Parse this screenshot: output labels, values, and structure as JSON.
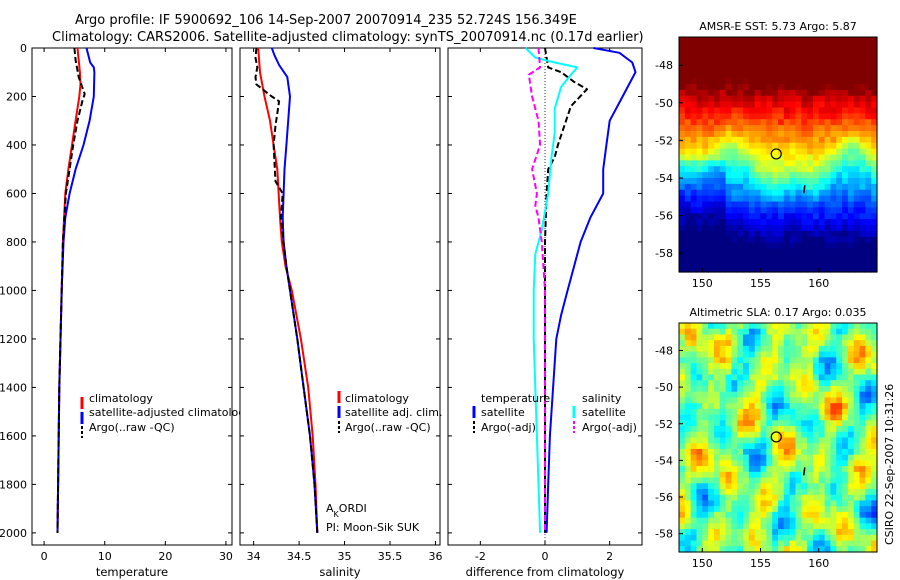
{
  "header": {
    "line1": "Argo profile: IF 5900692_106 14-Sep-2007 20070914_235 52.724S 156.349E",
    "line2": "Climatology: CARS2006. Satellite-adjusted climatology: synTS_20070914.nc (0.17d earlier)"
  },
  "colors": {
    "climatology": "#ff0000",
    "satellite": "#0000ff",
    "argo": "#000000",
    "salinity_satellite": "#00ffff",
    "salinity_argo": "#ff00ff"
  },
  "annotations": {
    "operator_a": "A",
    "operator_sub": "K",
    "operator_rest": "ORDI",
    "pi": "PI: Moon-Sik SUK",
    "credit": "CSIRO 22-Sep-2007 10:31:26"
  },
  "chart_data": [
    {
      "type": "line",
      "xlabel": "temperature",
      "ylabel": "",
      "xlim": [
        -2,
        31
      ],
      "ylim": [
        2050,
        0
      ],
      "xticks": [
        "0",
        "10",
        "20",
        "30"
      ],
      "yticks": [
        "0",
        "200",
        "400",
        "600",
        "800",
        "1000",
        "1200",
        "1400",
        "1600",
        "1800",
        "2000"
      ],
      "legend": [
        "climatology",
        "satellite-adjusted climatology",
        "Argo(..raw -QC)"
      ],
      "series": [
        {
          "name": "climatology",
          "color": "#ff0000",
          "dash": "",
          "points": [
            [
              5.5,
              0
            ],
            [
              5.7,
              50
            ],
            [
              5.9,
              100
            ],
            [
              6.0,
              150
            ],
            [
              5.8,
              200
            ],
            [
              5.2,
              300
            ],
            [
              4.6,
              400
            ],
            [
              4.0,
              500
            ],
            [
              3.5,
              600
            ],
            [
              3.1,
              800
            ],
            [
              2.9,
              1000
            ],
            [
              2.7,
              1200
            ],
            [
              2.5,
              1400
            ],
            [
              2.4,
              1600
            ],
            [
              2.3,
              1800
            ],
            [
              2.2,
              2000
            ]
          ]
        },
        {
          "name": "satellite-adjusted climatology",
          "color": "#0000ff",
          "dash": "",
          "points": [
            [
              7.0,
              0
            ],
            [
              7.6,
              60
            ],
            [
              8.2,
              80
            ],
            [
              8.3,
              100
            ],
            [
              8.2,
              200
            ],
            [
              7.5,
              300
            ],
            [
              6.5,
              400
            ],
            [
              5.2,
              500
            ],
            [
              4.2,
              600
            ],
            [
              3.5,
              700
            ],
            [
              3.2,
              800
            ],
            [
              2.9,
              1000
            ],
            [
              2.7,
              1200
            ],
            [
              2.5,
              1400
            ],
            [
              2.4,
              1600
            ],
            [
              2.3,
              1800
            ],
            [
              2.2,
              2000
            ]
          ]
        },
        {
          "name": "Argo(..raw -QC)",
          "color": "#000000",
          "dash": "6,3",
          "points": [
            [
              5.0,
              0
            ],
            [
              5.2,
              50
            ],
            [
              5.7,
              120
            ],
            [
              6.7,
              190
            ],
            [
              6.3,
              220
            ],
            [
              5.5,
              300
            ],
            [
              4.8,
              400
            ],
            [
              4.2,
              500
            ],
            [
              3.6,
              600
            ],
            [
              3.1,
              800
            ],
            [
              2.9,
              1000
            ],
            [
              2.7,
              1200
            ],
            [
              2.5,
              1400
            ],
            [
              2.4,
              1600
            ],
            [
              2.3,
              1800
            ],
            [
              2.2,
              2000
            ]
          ]
        }
      ]
    },
    {
      "type": "line",
      "xlabel": "salinity",
      "ylabel": "",
      "xlim": [
        33.85,
        36.05
      ],
      "ylim": [
        2050,
        0
      ],
      "xticks": [
        "34",
        "34.5",
        "35",
        "35.5",
        "36"
      ],
      "legend": [
        "climatology",
        "satellite adj. clim.",
        "Argo(..raw -QC)"
      ],
      "series": [
        {
          "name": "climatology",
          "color": "#ff0000",
          "dash": "",
          "points": [
            [
              34.05,
              0
            ],
            [
              34.07,
              100
            ],
            [
              34.12,
              200
            ],
            [
              34.18,
              300
            ],
            [
              34.22,
              400
            ],
            [
              34.26,
              500
            ],
            [
              34.29,
              700
            ],
            [
              34.31,
              800
            ],
            [
              34.35,
              900
            ],
            [
              34.42,
              1000
            ],
            [
              34.52,
              1200
            ],
            [
              34.6,
              1400
            ],
            [
              34.65,
              1600
            ],
            [
              34.68,
              1800
            ],
            [
              34.7,
              2000
            ]
          ]
        },
        {
          "name": "satellite adj. clim.",
          "color": "#0000ff",
          "dash": "",
          "points": [
            [
              34.2,
              0
            ],
            [
              34.23,
              30
            ],
            [
              34.28,
              70
            ],
            [
              34.37,
              120
            ],
            [
              34.4,
              200
            ],
            [
              34.38,
              300
            ],
            [
              34.36,
              400
            ],
            [
              34.34,
              500
            ],
            [
              34.33,
              600
            ],
            [
              34.32,
              700
            ],
            [
              34.33,
              800
            ],
            [
              34.36,
              900
            ],
            [
              34.4,
              1000
            ],
            [
              34.48,
              1200
            ],
            [
              34.55,
              1400
            ],
            [
              34.62,
              1600
            ],
            [
              34.67,
              1800
            ],
            [
              34.7,
              2000
            ]
          ]
        },
        {
          "name": "Argo(..raw -QC)",
          "color": "#000000",
          "dash": "6,3",
          "points": [
            [
              34.03,
              0
            ],
            [
              34.02,
              40
            ],
            [
              34.04,
              80
            ],
            [
              34.02,
              120
            ],
            [
              34.03,
              150
            ],
            [
              34.2,
              200
            ],
            [
              34.28,
              220
            ],
            [
              34.24,
              320
            ],
            [
              34.22,
              400
            ],
            [
              34.24,
              550
            ],
            [
              34.32,
              600
            ],
            [
              34.3,
              700
            ],
            [
              34.33,
              800
            ],
            [
              34.36,
              900
            ],
            [
              34.4,
              1000
            ],
            [
              34.48,
              1200
            ],
            [
              34.55,
              1400
            ],
            [
              34.62,
              1600
            ],
            [
              34.67,
              1800
            ],
            [
              34.7,
              2000
            ]
          ]
        }
      ]
    },
    {
      "type": "line",
      "xlabel": "difference from climatology",
      "ylabel": "",
      "xlim": [
        -3.0,
        3.0
      ],
      "ylim": [
        2050,
        0
      ],
      "xticks": [
        "-2",
        "0",
        "2"
      ],
      "legend_groups": [
        {
          "title": "temperature",
          "entries": [
            "satellite",
            "Argo(-adj)"
          ]
        },
        {
          "title": "salinity",
          "entries": [
            "satellite",
            "Argo(-adj)"
          ]
        }
      ],
      "series": [
        {
          "name": "satellite (temperature)",
          "color": "#0000ff",
          "dash": "",
          "points": [
            [
              1.5,
              0
            ],
            [
              2.3,
              20
            ],
            [
              2.7,
              60
            ],
            [
              2.8,
              100
            ],
            [
              2.4,
              200
            ],
            [
              2.0,
              300
            ],
            [
              1.9,
              400
            ],
            [
              1.8,
              500
            ],
            [
              1.8,
              600
            ],
            [
              1.4,
              700
            ],
            [
              1.1,
              800
            ],
            [
              0.9,
              900
            ],
            [
              0.7,
              1000
            ],
            [
              0.5,
              1100
            ],
            [
              0.35,
              1200
            ],
            [
              0.25,
              1400
            ],
            [
              0.15,
              1600
            ],
            [
              0.1,
              1800
            ],
            [
              0.05,
              2000
            ]
          ]
        },
        {
          "name": "Argo(-adj) (temperature)",
          "color": "#000000",
          "dash": "6,3",
          "points": [
            [
              0.0,
              0
            ],
            [
              0.1,
              80
            ],
            [
              0.5,
              100
            ],
            [
              0.9,
              140
            ],
            [
              1.3,
              170
            ],
            [
              0.8,
              240
            ],
            [
              0.6,
              320
            ],
            [
              0.4,
              400
            ],
            [
              0.3,
              450
            ],
            [
              0.1,
              500
            ],
            [
              0.05,
              600
            ],
            [
              0.0,
              800
            ],
            [
              0.0,
              1000
            ],
            [
              0.0,
              1200
            ],
            [
              0.0,
              1400
            ],
            [
              0.0,
              1600
            ],
            [
              0.0,
              2000
            ]
          ]
        },
        {
          "name": "satellite (salinity)",
          "color": "#00ffff",
          "dash": "",
          "points": [
            [
              -0.6,
              0
            ],
            [
              -0.3,
              40
            ],
            [
              0.3,
              60
            ],
            [
              1.0,
              80
            ],
            [
              0.8,
              110
            ],
            [
              0.5,
              160
            ],
            [
              0.3,
              250
            ],
            [
              0.3,
              350
            ],
            [
              0.2,
              450
            ],
            [
              0.1,
              600
            ],
            [
              -0.1,
              750
            ],
            [
              -0.3,
              850
            ],
            [
              -0.35,
              1000
            ],
            [
              -0.35,
              1200
            ],
            [
              -0.3,
              1400
            ],
            [
              -0.25,
              1600
            ],
            [
              -0.2,
              1800
            ],
            [
              -0.15,
              2000
            ]
          ]
        },
        {
          "name": "Argo(-adj) (salinity)",
          "color": "#ff00ff",
          "dash": "6,3",
          "points": [
            [
              -0.2,
              0
            ],
            [
              -0.15,
              80
            ],
            [
              -0.5,
              110
            ],
            [
              -0.4,
              200
            ],
            [
              -0.2,
              300
            ],
            [
              -0.15,
              400
            ],
            [
              -0.4,
              500
            ],
            [
              -0.25,
              600
            ],
            [
              -0.3,
              650
            ],
            [
              -0.2,
              700
            ],
            [
              -0.1,
              800
            ],
            [
              0.0,
              1000
            ],
            [
              0.0,
              2000
            ]
          ]
        }
      ]
    },
    {
      "type": "heatmap",
      "title": "AMSR-E SST: 5.73 Argo: 5.87",
      "xticks": [
        "150",
        "155",
        "160"
      ],
      "yticks": [
        "-48",
        "-50",
        "-52",
        "-54",
        "-56",
        "-58"
      ],
      "xlim": [
        148,
        165
      ],
      "ylim": [
        -59,
        -46.5
      ],
      "colormap": "jet",
      "profile_location": [
        156.35,
        -52.72
      ],
      "marker2": [
        158.8,
        -54.6
      ]
    },
    {
      "type": "heatmap",
      "title": "Altimetric SLA: 0.17 Argo: 0.035",
      "xticks": [
        "150",
        "155",
        "160"
      ],
      "yticks": [
        "-48",
        "-50",
        "-52",
        "-54",
        "-56",
        "-58"
      ],
      "xlim": [
        148,
        165
      ],
      "ylim": [
        -59,
        -46.5
      ],
      "colormap": "jet",
      "profile_location": [
        156.35,
        -52.72
      ],
      "marker2": [
        158.8,
        -54.6
      ]
    }
  ]
}
